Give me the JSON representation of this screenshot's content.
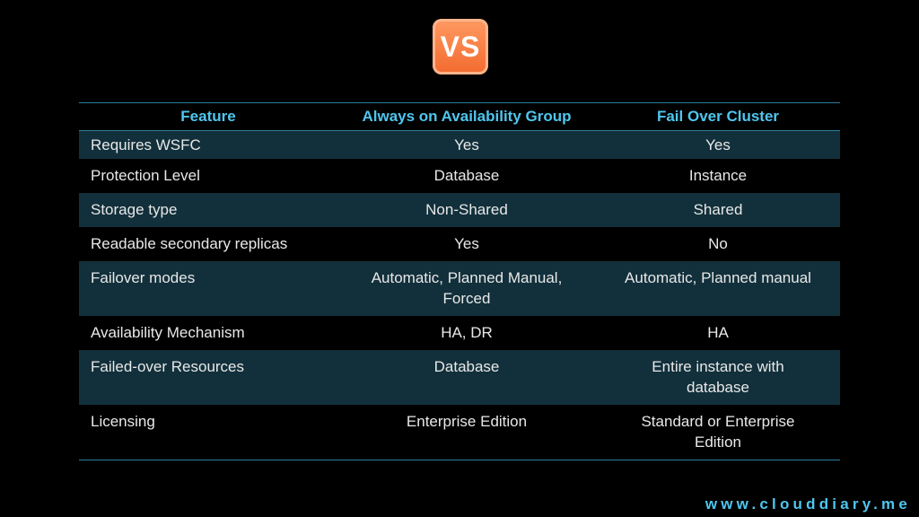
{
  "badge": "VS",
  "table": {
    "header": [
      "Feature",
      "Always on Availability Group",
      "Fail Over Cluster"
    ],
    "rows": [
      [
        "Requires WSFC",
        "Yes",
        "Yes"
      ],
      [
        "Protection Level",
        "Database",
        "Instance"
      ],
      [
        "Storage type",
        "Non-Shared",
        "Shared"
      ],
      [
        "Readable secondary replicas",
        "Yes",
        "No"
      ],
      [
        "Failover modes",
        [
          "Automatic, Planned Manual,",
          "Forced"
        ],
        "Automatic, Planned manual"
      ],
      [
        "Availability Mechanism",
        "HA, DR",
        "HA"
      ],
      [
        "Failed-over Resources",
        "Database",
        [
          "Entire instance with",
          "database"
        ]
      ],
      [
        "Licensing",
        "Enterprise Edition",
        [
          "Standard or Enterprise",
          "Edition"
        ]
      ]
    ]
  },
  "footer": "www.clouddiary.me"
}
